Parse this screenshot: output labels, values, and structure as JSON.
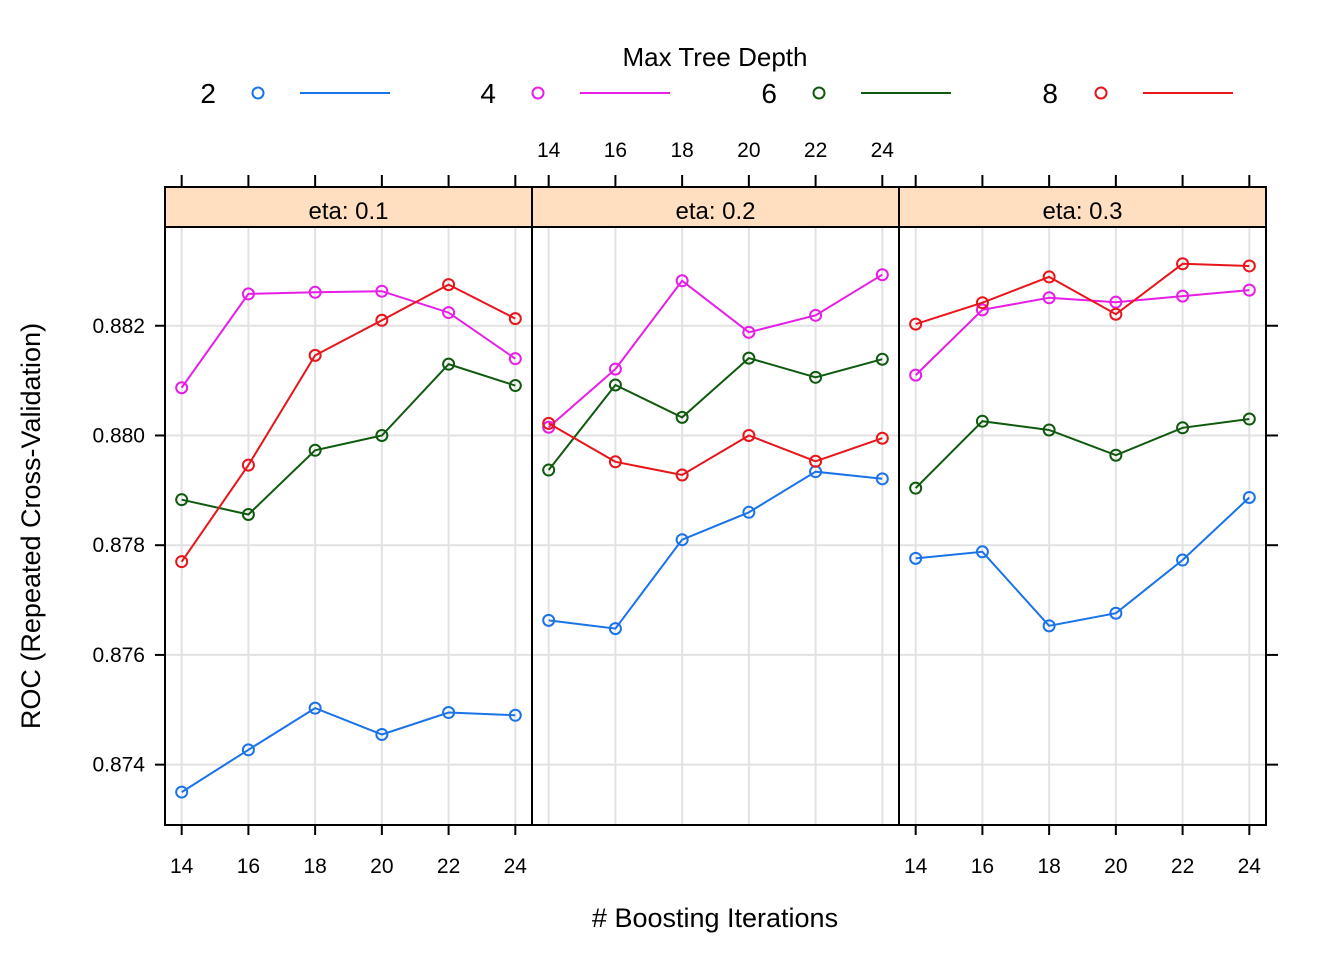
{
  "chart_data": {
    "type": "line",
    "legend": {
      "title": "Max Tree Depth",
      "placement": "top",
      "entries": [
        {
          "label": "2",
          "color": "#1a73e8"
        },
        {
          "label": "4",
          "color": "#e61ee6"
        },
        {
          "label": "6",
          "color": "#0f5a0f"
        },
        {
          "label": "8",
          "color": "#e8151b"
        }
      ]
    },
    "xlabel": "# Boosting Iterations",
    "ylabel": "ROC (Repeated Cross-Validation)",
    "x": [
      14,
      16,
      18,
      20,
      22,
      24
    ],
    "x_ticks": [
      "14",
      "16",
      "18",
      "20",
      "22",
      "24"
    ],
    "xlim": [
      13.5,
      24.5
    ],
    "y_ticks": [
      "0.874",
      "0.876",
      "0.878",
      "0.880",
      "0.882"
    ],
    "ylim": [
      0.8729,
      0.8838
    ],
    "grid": true,
    "strip_color": "#ffdfbf",
    "panels": [
      {
        "label": "eta: 0.1",
        "series": [
          {
            "name": "2",
            "values": [
              0.8735,
              0.87427,
              0.87503,
              0.87455,
              0.87495,
              0.8749
            ]
          },
          {
            "name": "4",
            "values": [
              0.88087,
              0.88258,
              0.88261,
              0.88263,
              0.88224,
              0.8814
            ]
          },
          {
            "name": "6",
            "values": [
              0.87883,
              0.87856,
              0.87973,
              0.88,
              0.8813,
              0.88091
            ]
          },
          {
            "name": "8",
            "values": [
              0.8777,
              0.87946,
              0.88146,
              0.8821,
              0.88275,
              0.88213
            ]
          }
        ]
      },
      {
        "label": "eta: 0.2",
        "series": [
          {
            "name": "2",
            "values": [
              0.87663,
              0.87648,
              0.8781,
              0.8786,
              0.87934,
              0.87921
            ]
          },
          {
            "name": "4",
            "values": [
              0.88015,
              0.88121,
              0.88282,
              0.88188,
              0.88219,
              0.88293
            ]
          },
          {
            "name": "6",
            "values": [
              0.87937,
              0.88092,
              0.88033,
              0.88141,
              0.88106,
              0.88139
            ]
          },
          {
            "name": "8",
            "values": [
              0.88022,
              0.87952,
              0.87928,
              0.88,
              0.87953,
              0.87995
            ]
          }
        ]
      },
      {
        "label": "eta: 0.3",
        "series": [
          {
            "name": "2",
            "values": [
              0.87776,
              0.87788,
              0.87653,
              0.87676,
              0.87773,
              0.87887
            ]
          },
          {
            "name": "4",
            "values": [
              0.8811,
              0.88229,
              0.88251,
              0.88243,
              0.88254,
              0.88265
            ]
          },
          {
            "name": "6",
            "values": [
              0.87904,
              0.88026,
              0.8801,
              0.87964,
              0.88014,
              0.8803
            ]
          },
          {
            "name": "8",
            "values": [
              0.88203,
              0.88242,
              0.88289,
              0.88221,
              0.88313,
              0.88309
            ]
          }
        ]
      }
    ]
  }
}
